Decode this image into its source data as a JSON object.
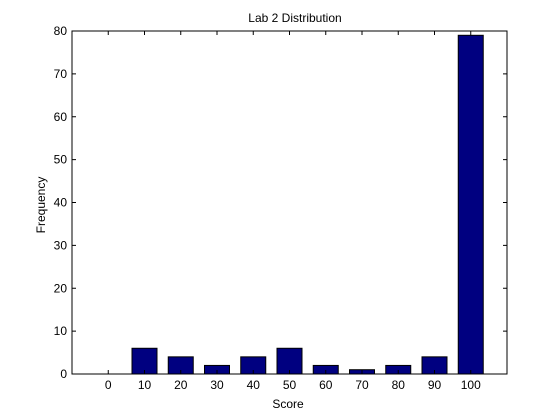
{
  "chart_data": {
    "type": "bar",
    "title": "Lab 2 Distribution",
    "xlabel": "Score",
    "ylabel": "Frequency",
    "categories": [
      "0",
      "10",
      "20",
      "30",
      "40",
      "50",
      "60",
      "70",
      "80",
      "90",
      "100"
    ],
    "values": [
      0,
      6,
      4,
      2,
      4,
      6,
      2,
      1,
      2,
      4,
      79
    ],
    "ylim": [
      0,
      80
    ],
    "yticks": [
      "0",
      "10",
      "20",
      "30",
      "40",
      "50",
      "60",
      "70",
      "80"
    ],
    "grid": false,
    "legend": "none",
    "bar_color": "#000080",
    "bar_edge_color": "#000000"
  }
}
